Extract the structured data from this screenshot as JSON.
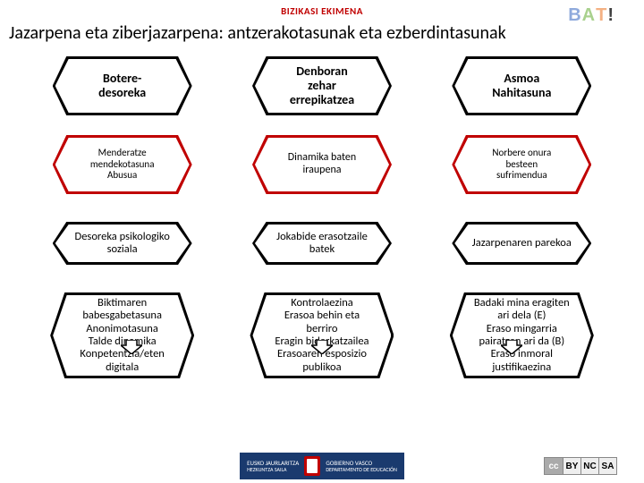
{
  "header": {
    "program": "BIZIKASI EKIMENA",
    "logo": {
      "b": "B",
      "a": "A",
      "t": "T",
      "ex": "!"
    }
  },
  "subtitle": "Jazarpena eta ziberjazarpena: antzerakotasunak eta ezberdintasunak",
  "columns": [
    {
      "row1": "Botere-\ndesoreka",
      "row2": "Menderatze\nmendekotasuna\nAbusua",
      "row3": "Desoreka psikologiko\nsoziala",
      "row4": "Biktimaren\nbabesgabetasuna\nAnonimotasuna\nTalde dinamika\nKonpetentzia/eten\ndigitala"
    },
    {
      "row1": "Denboran\nzehar\nerrepikatzea",
      "row2": "Dinamika baten\niraupena",
      "row3": "Jokabide erasotzaile\nbatek",
      "row4": "Kontrolaezina\nErasoa behin eta\nberriro\nEragin biderkatzailea\nErasoaren esposizio\npublikoa"
    },
    {
      "row1": "Asmoa\nNahitasuna",
      "row2": "Norbere onura\nbesteen\nsufrimendua",
      "row3": "Jazarpenaren parekoa",
      "row4": "Badaki mina eragiten\nari dela (E)\nEraso mingarria\npairatzen ari da (B)\nEraso inmoral\njustifikaezina"
    }
  ],
  "footer": {
    "gov_eu_1": "EUSKO JAURLARITZA",
    "gov_eu_2": "HEZKUNTZA SAILA",
    "gov_es_1": "GOBIERNO VASCO",
    "gov_es_2": "DEPARTAMENTO DE EDUCACIÓN",
    "cc": {
      "cc": "cc",
      "by": "BY",
      "nc": "NC",
      "sa": "SA"
    }
  },
  "style": {
    "accent_red": "#c00000",
    "black": "#000000",
    "gov_blue": "#1a3a6e"
  }
}
